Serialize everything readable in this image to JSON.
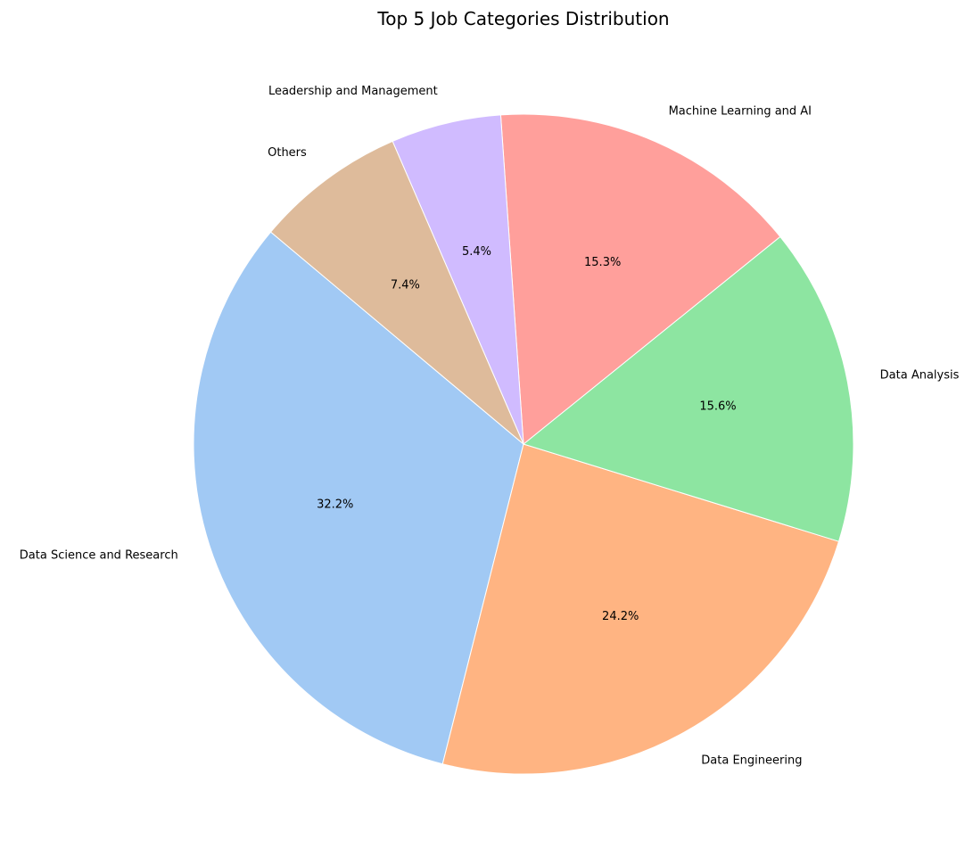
{
  "chart_data": {
    "type": "pie",
    "title": "Top 5 Job Categories Distribution",
    "start_angle_deg": 140,
    "direction": "counterclockwise",
    "slices": [
      {
        "label": "Data Science and Research",
        "value": 32.2,
        "pct_label": "32.2%",
        "color": "#a1c9f4"
      },
      {
        "label": "Data Engineering",
        "value": 24.2,
        "pct_label": "24.2%",
        "color": "#ffb482"
      },
      {
        "label": "Data Analysis",
        "value": 15.6,
        "pct_label": "15.6%",
        "color": "#8de5a1"
      },
      {
        "label": "Machine Learning and AI",
        "value": 15.3,
        "pct_label": "15.3%",
        "color": "#ff9f9b"
      },
      {
        "label": "Leadership and Management",
        "value": 5.4,
        "pct_label": "5.4%",
        "color": "#d0bbff"
      },
      {
        "label": "Others",
        "value": 7.4,
        "pct_label": "7.4%",
        "color": "#debb9b"
      }
    ]
  }
}
